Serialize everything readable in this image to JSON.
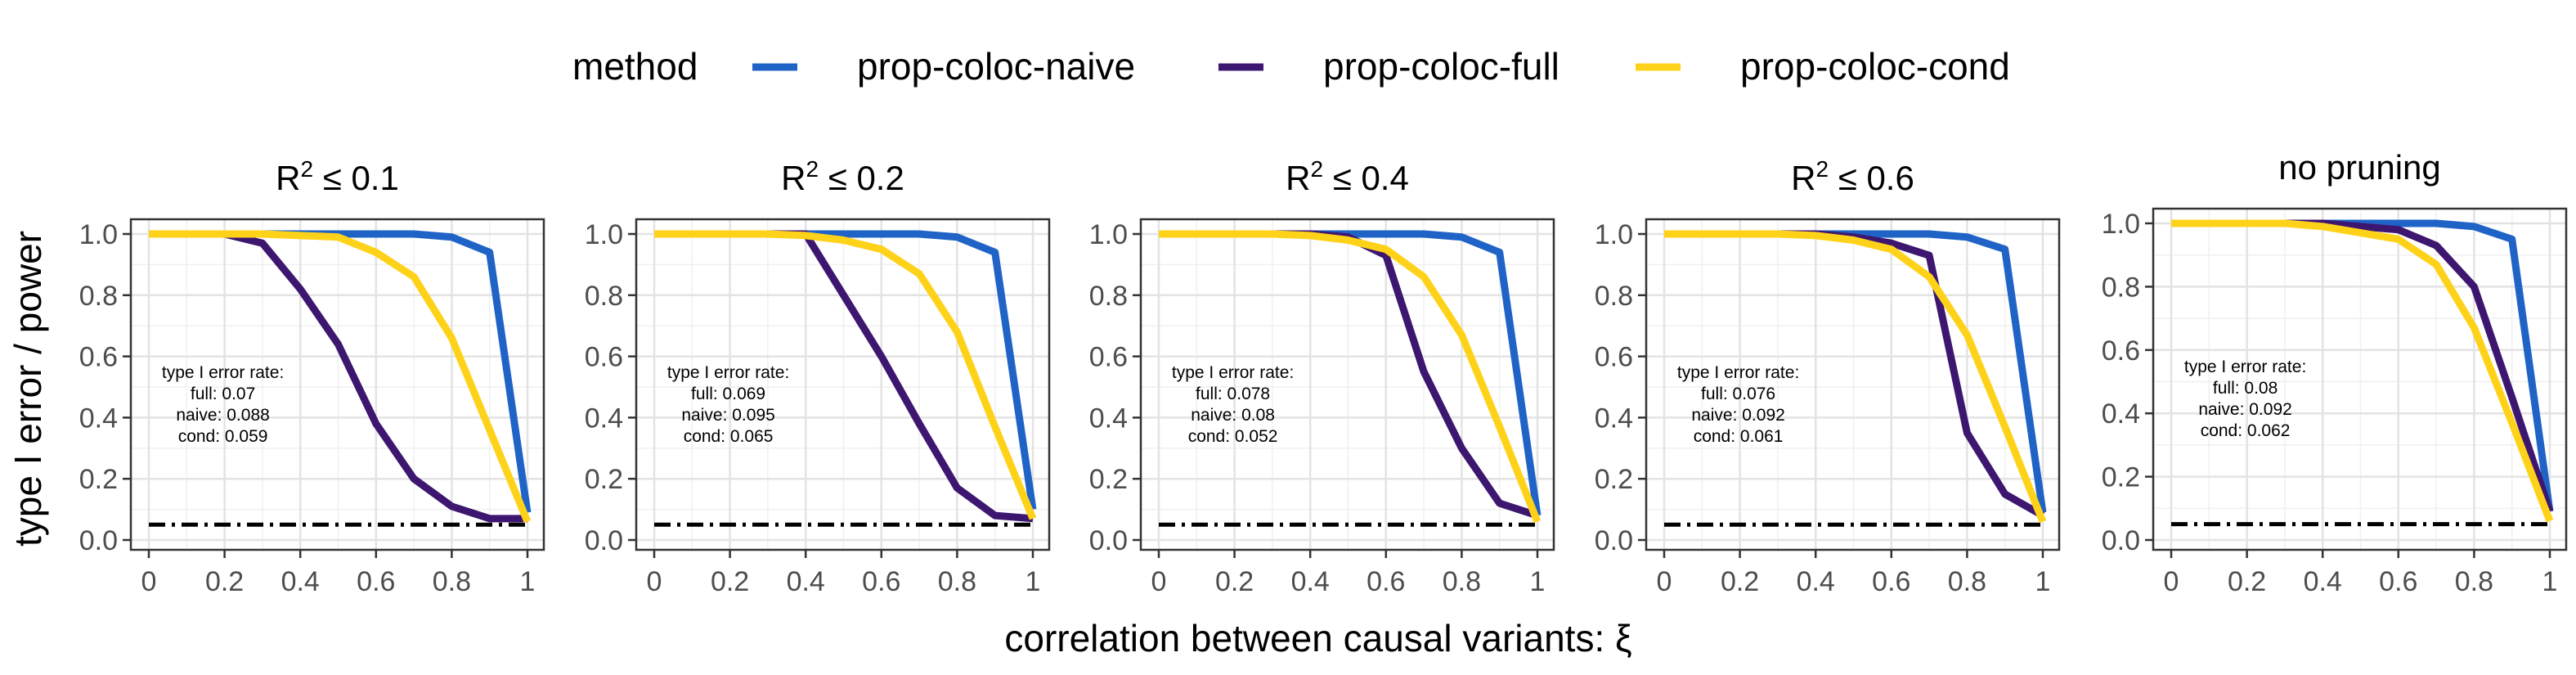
{
  "legend": {
    "title": "method",
    "items": [
      {
        "label": "prop-coloc-naive",
        "color": "#1f63c6"
      },
      {
        "label": "prop-coloc-full",
        "color": "#3d1670"
      },
      {
        "label": "prop-coloc-cond",
        "color": "#ffd21a"
      }
    ]
  },
  "y_axis_label": "type I error / power",
  "x_axis_label": "correlation between causal variants: ξ",
  "chart_data": {
    "type": "line",
    "x": [
      0,
      0.1,
      0.2,
      0.3,
      0.4,
      0.5,
      0.6,
      0.7,
      0.8,
      0.9,
      1
    ],
    "x_ticks": [
      "0",
      "0.2",
      "0.4",
      "0.6",
      "0.8",
      "1"
    ],
    "y_ticks": [
      "0.0",
      "0.2",
      "0.4",
      "0.6",
      "0.8",
      "1.0"
    ],
    "xlim": [
      0,
      1
    ],
    "ylim": [
      0,
      1
    ],
    "grid": true,
    "legend_position": "top",
    "reference_line": {
      "y": 0.05,
      "style": "dashdot",
      "color": "#000000"
    },
    "panels": [
      {
        "title_prefix": "R",
        "title_sup": "2",
        "title_suffix": " ≤ 0.1",
        "annotation": [
          "type I error rate:",
          "full: 0.07",
          "naive: 0.088",
          "cond: 0.059"
        ],
        "series": [
          {
            "name": "prop-coloc-naive",
            "values": [
              1.0,
              1.0,
              1.0,
              1.0,
              1.0,
              1.0,
              1.0,
              1.0,
              0.99,
              0.94,
              0.09
            ]
          },
          {
            "name": "prop-coloc-full",
            "values": [
              1.0,
              1.0,
              1.0,
              0.97,
              0.82,
              0.64,
              0.38,
              0.2,
              0.11,
              0.07,
              0.07
            ]
          },
          {
            "name": "prop-coloc-cond",
            "values": [
              1.0,
              1.0,
              1.0,
              1.0,
              0.995,
              0.99,
              0.94,
              0.86,
              0.66,
              0.36,
              0.06
            ]
          }
        ]
      },
      {
        "title_prefix": "R",
        "title_sup": "2",
        "title_suffix": " ≤ 0.2",
        "annotation": [
          "type I error rate:",
          "full: 0.069",
          "naive: 0.095",
          "cond: 0.065"
        ],
        "series": [
          {
            "name": "prop-coloc-naive",
            "values": [
              1.0,
              1.0,
              1.0,
              1.0,
              1.0,
              1.0,
              1.0,
              1.0,
              0.99,
              0.94,
              0.1
            ]
          },
          {
            "name": "prop-coloc-full",
            "values": [
              1.0,
              1.0,
              1.0,
              1.0,
              1.0,
              0.8,
              0.6,
              0.38,
              0.17,
              0.08,
              0.07
            ]
          },
          {
            "name": "prop-coloc-cond",
            "values": [
              1.0,
              1.0,
              1.0,
              1.0,
              0.995,
              0.98,
              0.95,
              0.87,
              0.68,
              0.37,
              0.07
            ]
          }
        ]
      },
      {
        "title_prefix": "R",
        "title_sup": "2",
        "title_suffix": " ≤ 0.4",
        "annotation": [
          "type I error rate:",
          "full: 0.078",
          "naive: 0.08",
          "cond: 0.052"
        ],
        "series": [
          {
            "name": "prop-coloc-naive",
            "values": [
              1.0,
              1.0,
              1.0,
              1.0,
              1.0,
              1.0,
              1.0,
              1.0,
              0.99,
              0.94,
              0.08
            ]
          },
          {
            "name": "prop-coloc-full",
            "values": [
              1.0,
              1.0,
              1.0,
              1.0,
              1.0,
              0.99,
              0.93,
              0.55,
              0.3,
              0.12,
              0.08
            ]
          },
          {
            "name": "prop-coloc-cond",
            "values": [
              1.0,
              1.0,
              1.0,
              1.0,
              0.995,
              0.98,
              0.95,
              0.86,
              0.67,
              0.37,
              0.06
            ]
          }
        ]
      },
      {
        "title_prefix": "R",
        "title_sup": "2",
        "title_suffix": " ≤ 0.6",
        "annotation": [
          "type I error rate:",
          "full: 0.076",
          "naive: 0.092",
          "cond: 0.061"
        ],
        "series": [
          {
            "name": "prop-coloc-naive",
            "values": [
              1.0,
              1.0,
              1.0,
              1.0,
              1.0,
              1.0,
              1.0,
              1.0,
              0.99,
              0.95,
              0.09
            ]
          },
          {
            "name": "prop-coloc-full",
            "values": [
              1.0,
              1.0,
              1.0,
              1.0,
              1.0,
              0.99,
              0.97,
              0.93,
              0.35,
              0.15,
              0.08
            ]
          },
          {
            "name": "prop-coloc-cond",
            "values": [
              1.0,
              1.0,
              1.0,
              1.0,
              0.995,
              0.98,
              0.95,
              0.86,
              0.67,
              0.37,
              0.06
            ]
          }
        ]
      },
      {
        "title_prefix": "no pruning",
        "title_sup": "",
        "title_suffix": "",
        "annotation": [
          "type I error rate:",
          "full: 0.08",
          "naive: 0.092",
          "cond: 0.062"
        ],
        "series": [
          {
            "name": "prop-coloc-naive",
            "values": [
              1.0,
              1.0,
              1.0,
              1.0,
              1.0,
              1.0,
              1.0,
              1.0,
              0.99,
              0.95,
              0.09
            ]
          },
          {
            "name": "prop-coloc-full",
            "values": [
              1.0,
              1.0,
              1.0,
              1.0,
              1.0,
              0.99,
              0.98,
              0.93,
              0.8,
              0.45,
              0.09
            ]
          },
          {
            "name": "prop-coloc-cond",
            "values": [
              1.0,
              1.0,
              1.0,
              1.0,
              0.99,
              0.97,
              0.95,
              0.87,
              0.67,
              0.37,
              0.06
            ]
          }
        ]
      }
    ]
  }
}
